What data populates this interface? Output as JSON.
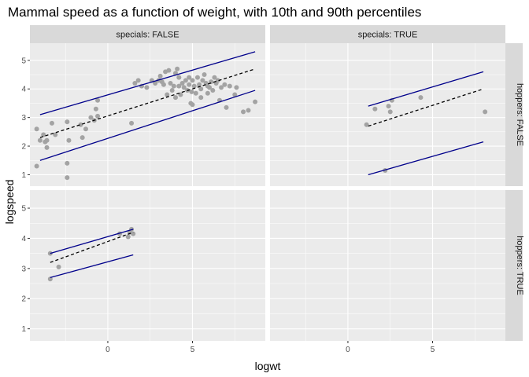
{
  "chart_data": {
    "type": "scatter",
    "title": "Mammal speed as a function of weight, with 10th and 90th percentiles",
    "xlabel": "logwt",
    "ylabel": "logspeed",
    "xlim": [
      -4.6,
      9.3
    ],
    "ylim": [
      0.6,
      5.6
    ],
    "x_ticks": [
      0,
      5
    ],
    "y_ticks": [
      1,
      2,
      3,
      4,
      5
    ],
    "col_strips": [
      "specials: FALSE",
      "specials: TRUE"
    ],
    "row_strips": [
      "hoppers: FALSE",
      "hoppers: TRUE"
    ],
    "colors": {
      "point": "#a3a3a3",
      "quantile_line": "#00008b",
      "median_line": "#000000",
      "panel_bg": "#ebebeb",
      "strip_bg": "#d9d9d9",
      "grid_major": "#ffffff"
    },
    "panels": [
      {
        "col": 0,
        "row": 0,
        "points": [
          [
            -4.2,
            1.3
          ],
          [
            -4.2,
            2.6
          ],
          [
            -4.0,
            2.2
          ],
          [
            -3.8,
            2.4
          ],
          [
            -3.7,
            2.15
          ],
          [
            -3.6,
            2.2
          ],
          [
            -3.6,
            1.95
          ],
          [
            -3.3,
            2.8
          ],
          [
            -3.1,
            2.4
          ],
          [
            -2.4,
            2.85
          ],
          [
            -2.3,
            2.2
          ],
          [
            -2.4,
            1.4
          ],
          [
            -2.4,
            0.9
          ],
          [
            -1.6,
            2.75
          ],
          [
            -1.5,
            2.3
          ],
          [
            -1.3,
            2.6
          ],
          [
            -1.0,
            3.0
          ],
          [
            -0.8,
            2.9
          ],
          [
            -0.7,
            3.3
          ],
          [
            -0.6,
            3.6
          ],
          [
            -0.6,
            3.05
          ],
          [
            1.4,
            2.8
          ],
          [
            1.6,
            4.2
          ],
          [
            1.8,
            4.3
          ],
          [
            2.0,
            4.1
          ],
          [
            2.3,
            4.05
          ],
          [
            2.6,
            4.3
          ],
          [
            2.8,
            4.2
          ],
          [
            3.0,
            4.3
          ],
          [
            3.1,
            4.45
          ],
          [
            3.2,
            4.25
          ],
          [
            3.3,
            4.15
          ],
          [
            3.4,
            4.6
          ],
          [
            3.5,
            3.8
          ],
          [
            3.6,
            4.65
          ],
          [
            3.7,
            4.2
          ],
          [
            3.8,
            3.95
          ],
          [
            3.9,
            4.1
          ],
          [
            4.0,
            3.7
          ],
          [
            4.0,
            4.55
          ],
          [
            4.1,
            4.7
          ],
          [
            4.2,
            4.1
          ],
          [
            4.2,
            4.4
          ],
          [
            4.3,
            3.8
          ],
          [
            4.4,
            4.2
          ],
          [
            4.5,
            4.05
          ],
          [
            4.6,
            4.3
          ],
          [
            4.7,
            3.95
          ],
          [
            4.8,
            4.15
          ],
          [
            4.8,
            4.4
          ],
          [
            4.9,
            3.5
          ],
          [
            4.95,
            3.9
          ],
          [
            5.0,
            4.3
          ],
          [
            5.0,
            3.45
          ],
          [
            5.1,
            4.1
          ],
          [
            5.2,
            3.85
          ],
          [
            5.3,
            4.4
          ],
          [
            5.4,
            4.15
          ],
          [
            5.5,
            4.0
          ],
          [
            5.5,
            3.7
          ],
          [
            5.6,
            4.3
          ],
          [
            5.7,
            4.5
          ],
          [
            5.8,
            4.2
          ],
          [
            5.9,
            3.85
          ],
          [
            5.9,
            4.1
          ],
          [
            6.0,
            4.05
          ],
          [
            6.1,
            4.25
          ],
          [
            6.2,
            3.95
          ],
          [
            6.3,
            4.4
          ],
          [
            6.4,
            4.2
          ],
          [
            6.5,
            4.3
          ],
          [
            6.6,
            3.6
          ],
          [
            6.7,
            4.05
          ],
          [
            6.9,
            4.15
          ],
          [
            7.0,
            3.35
          ],
          [
            7.2,
            4.1
          ],
          [
            7.5,
            3.8
          ],
          [
            7.6,
            4.05
          ],
          [
            8.0,
            3.2
          ],
          [
            8.3,
            3.25
          ],
          [
            8.7,
            3.55
          ]
        ],
        "q10": [
          [
            -4.0,
            1.5
          ],
          [
            8.7,
            3.95
          ]
        ],
        "q50": [
          [
            -4.0,
            2.3
          ],
          [
            8.7,
            4.7
          ]
        ],
        "q90": [
          [
            -4.0,
            3.1
          ],
          [
            8.7,
            5.3
          ]
        ]
      },
      {
        "col": 1,
        "row": 0,
        "points": [
          [
            1.1,
            2.75
          ],
          [
            1.6,
            3.3
          ],
          [
            2.2,
            1.15
          ],
          [
            2.4,
            3.4
          ],
          [
            2.5,
            3.2
          ],
          [
            2.6,
            3.6
          ],
          [
            4.3,
            3.7
          ],
          [
            8.1,
            3.2
          ]
        ],
        "q10": [
          [
            1.2,
            1.0
          ],
          [
            8.0,
            2.15
          ]
        ],
        "q50": [
          [
            1.2,
            2.7
          ],
          [
            8.0,
            4.0
          ]
        ],
        "q90": [
          [
            1.2,
            3.4
          ],
          [
            8.0,
            4.6
          ]
        ]
      },
      {
        "col": 0,
        "row": 1,
        "points": [
          [
            -3.4,
            3.5
          ],
          [
            -3.4,
            2.65
          ],
          [
            -2.9,
            3.05
          ],
          [
            0.7,
            4.15
          ],
          [
            1.2,
            4.05
          ],
          [
            1.3,
            4.2
          ],
          [
            1.4,
            4.3
          ],
          [
            1.5,
            4.15
          ]
        ],
        "q10": [
          [
            -3.4,
            2.7
          ],
          [
            1.5,
            3.45
          ]
        ],
        "q50": [
          [
            -3.4,
            3.2
          ],
          [
            1.5,
            4.2
          ]
        ],
        "q90": [
          [
            -3.4,
            3.5
          ],
          [
            1.5,
            4.3
          ]
        ]
      },
      {
        "col": 1,
        "row": 1,
        "points": [],
        "q10": [],
        "q50": [],
        "q90": []
      }
    ]
  }
}
